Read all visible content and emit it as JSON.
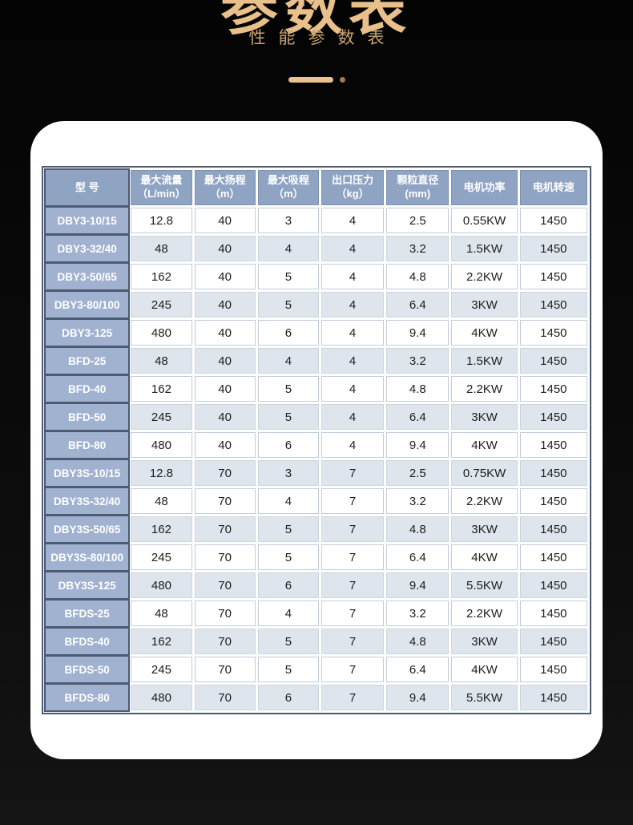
{
  "hero": {
    "title": "参数表",
    "subtitle": "性能参数表"
  },
  "colors": {
    "gold_title": "#e9c08a",
    "gold_subtitle": "#c9a36e",
    "gold_divider": "#e9c28c",
    "card_bg": "#ffffff",
    "header_bg": "#8fa3c3",
    "model_cell_bg": "#a1b2d0",
    "stripe_row_bg": "#dfe5ec",
    "table_border": "#4d5a73",
    "page_bg": "#0b0b0b"
  },
  "table": {
    "columns": [
      {
        "label": "型 号",
        "sub": ""
      },
      {
        "label": "最大流量",
        "sub": "（L/min）"
      },
      {
        "label": "最大扬程",
        "sub": "（m）"
      },
      {
        "label": "最大吸程",
        "sub": "（m）"
      },
      {
        "label": "出口压力",
        "sub": "（kg）"
      },
      {
        "label": "颗粒直径",
        "sub": "(mm)"
      },
      {
        "label": "电机功率",
        "sub": ""
      },
      {
        "label": "电机转速",
        "sub": ""
      }
    ],
    "rows": [
      [
        "DBY3-10/15",
        "12.8",
        "40",
        "3",
        "4",
        "2.5",
        "0.55KW",
        "1450"
      ],
      [
        "DBY3-32/40",
        "48",
        "40",
        "4",
        "4",
        "3.2",
        "1.5KW",
        "1450"
      ],
      [
        "DBY3-50/65",
        "162",
        "40",
        "5",
        "4",
        "4.8",
        "2.2KW",
        "1450"
      ],
      [
        "DBY3-80/100",
        "245",
        "40",
        "5",
        "4",
        "6.4",
        "3KW",
        "1450"
      ],
      [
        "DBY3-125",
        "480",
        "40",
        "6",
        "4",
        "9.4",
        "4KW",
        "1450"
      ],
      [
        "BFD-25",
        "48",
        "40",
        "4",
        "4",
        "3.2",
        "1.5KW",
        "1450"
      ],
      [
        "BFD-40",
        "162",
        "40",
        "5",
        "4",
        "4.8",
        "2.2KW",
        "1450"
      ],
      [
        "BFD-50",
        "245",
        "40",
        "5",
        "4",
        "6.4",
        "3KW",
        "1450"
      ],
      [
        "BFD-80",
        "480",
        "40",
        "6",
        "4",
        "9.4",
        "4KW",
        "1450"
      ],
      [
        "DBY3S-10/15",
        "12.8",
        "70",
        "3",
        "7",
        "2.5",
        "0.75KW",
        "1450"
      ],
      [
        "DBY3S-32/40",
        "48",
        "70",
        "4",
        "7",
        "3.2",
        "2.2KW",
        "1450"
      ],
      [
        "DBY3S-50/65",
        "162",
        "70",
        "5",
        "7",
        "4.8",
        "3KW",
        "1450"
      ],
      [
        "DBY3S-80/100",
        "245",
        "70",
        "5",
        "7",
        "6.4",
        "4KW",
        "1450"
      ],
      [
        "DBY3S-125",
        "480",
        "70",
        "6",
        "7",
        "9.4",
        "5.5KW",
        "1450"
      ],
      [
        "BFDS-25",
        "48",
        "70",
        "4",
        "7",
        "3.2",
        "2.2KW",
        "1450"
      ],
      [
        "BFDS-40",
        "162",
        "70",
        "5",
        "7",
        "4.8",
        "3KW",
        "1450"
      ],
      [
        "BFDS-50",
        "245",
        "70",
        "5",
        "7",
        "6.4",
        "4KW",
        "1450"
      ],
      [
        "BFDS-80",
        "480",
        "70",
        "6",
        "7",
        "9.4",
        "5.5KW",
        "1450"
      ]
    ]
  }
}
